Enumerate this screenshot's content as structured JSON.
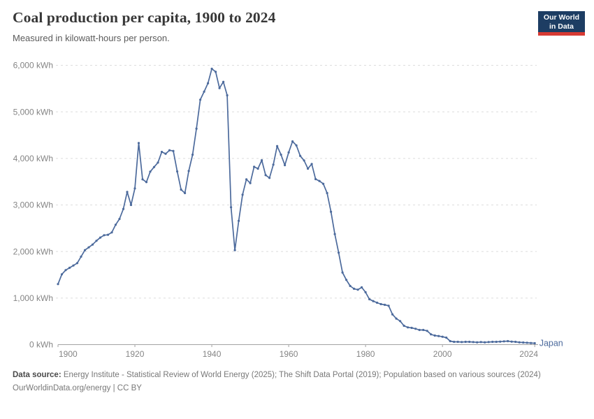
{
  "header": {
    "title": "Coal production per capita, 1900 to 2024",
    "subtitle": "Measured in kilowatt-hours per person."
  },
  "logo": {
    "line1": "Our World",
    "line2": "in Data"
  },
  "entity_label": "Japan",
  "colors": {
    "line": "#4c6a9c",
    "entity_label": "#4c6a9c",
    "axis": "#a3a3a3",
    "gridline": "#dcdcdc",
    "tick_text": "#858585",
    "logo_bg": "#1d3d63",
    "logo_stripe": "#d73a33"
  },
  "chart_data": {
    "type": "line",
    "title": "Coal production per capita, 1900 to 2024",
    "xlabel": "",
    "ylabel": "kilowatt-hours per person",
    "xlim": [
      1900,
      2024
    ],
    "ylim": [
      0,
      6000
    ],
    "grid": "horizontal-dashed",
    "legend_position": "end-of-line-label",
    "x_ticks": [
      1900,
      1920,
      1940,
      1960,
      1980,
      2000,
      2024
    ],
    "y_ticks": [
      0,
      1000,
      2000,
      3000,
      4000,
      5000,
      6000
    ],
    "y_tick_labels": [
      "0 kWh",
      "1,000 kWh",
      "2,000 kWh",
      "3,000 kWh",
      "4,000 kWh",
      "5,000 kWh",
      "6,000 kWh"
    ],
    "series": [
      {
        "name": "Japan",
        "x_start": 1900,
        "x_step": 1,
        "values": [
          1300,
          1510,
          1600,
          1650,
          1700,
          1750,
          1890,
          2030,
          2090,
          2150,
          2230,
          2300,
          2350,
          2360,
          2410,
          2575,
          2700,
          2915,
          3280,
          3000,
          3355,
          4330,
          3550,
          3490,
          3715,
          3815,
          3910,
          4140,
          4100,
          4175,
          4160,
          3720,
          3330,
          3255,
          3730,
          4080,
          4640,
          5260,
          5435,
          5615,
          5925,
          5860,
          5510,
          5645,
          5355,
          2950,
          2030,
          2660,
          3220,
          3550,
          3470,
          3820,
          3780,
          3960,
          3640,
          3580,
          3865,
          4265,
          4080,
          3855,
          4130,
          4365,
          4280,
          4055,
          3955,
          3780,
          3880,
          3555,
          3515,
          3455,
          3255,
          2855,
          2375,
          1975,
          1550,
          1390,
          1260,
          1200,
          1180,
          1230,
          1125,
          975,
          935,
          900,
          870,
          855,
          835,
          650,
          560,
          505,
          405,
          370,
          360,
          340,
          315,
          315,
          295,
          220,
          195,
          185,
          170,
          150,
          75,
          60,
          60,
          55,
          60,
          60,
          55,
          50,
          55,
          50,
          55,
          60,
          60,
          65,
          70,
          75,
          65,
          60,
          50,
          45,
          40,
          35,
          30
        ]
      }
    ]
  },
  "footer": {
    "source_label": "Data source:",
    "source_text": "Energy Institute - Statistical Review of World Energy (2025); The Shift Data Portal (2019); Population based on various sources (2024)",
    "link_text": "OurWorldinData.org/energy | CC BY"
  }
}
